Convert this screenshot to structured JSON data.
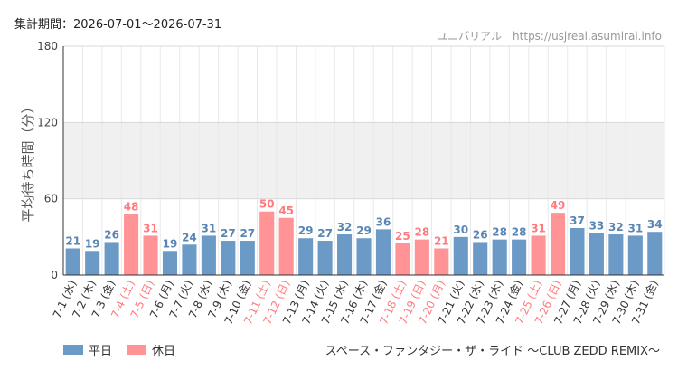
{
  "header": {
    "period_label": "集計期間：2026-07-01～2026-07-31",
    "credit": "ユニバリアル　https://usjreal.asumirai.info"
  },
  "footer": {
    "attraction_name": "スペース・ファンタジー・ザ・ライド ～CLUB ZEDD REMIX～"
  },
  "colors": {
    "weekday": "#6b9ac7",
    "holiday": "#ff9396",
    "holiday_text": "#ff7b7f"
  },
  "chart_data": {
    "type": "bar",
    "ylabel": "平均待ち時間（分）",
    "ylim": [
      0,
      180
    ],
    "yticks": [
      0,
      60,
      120,
      180
    ],
    "grid": true,
    "legend_position": "bottom-left",
    "legend": [
      {
        "key": "weekday",
        "label": "平日"
      },
      {
        "key": "holiday",
        "label": "休日"
      }
    ],
    "categories": [
      "7-1 (水)",
      "7-2 (木)",
      "7-3 (金)",
      "7-4 (土)",
      "7-5 (日)",
      "7-6 (月)",
      "7-7 (火)",
      "7-8 (水)",
      "7-9 (木)",
      "7-10 (金)",
      "7-11 (土)",
      "7-12 (日)",
      "7-13 (月)",
      "7-14 (火)",
      "7-15 (水)",
      "7-16 (木)",
      "7-17 (金)",
      "7-18 (土)",
      "7-19 (日)",
      "7-20 (月)",
      "7-21 (火)",
      "7-22 (水)",
      "7-23 (木)",
      "7-24 (金)",
      "7-25 (土)",
      "7-26 (日)",
      "7-27 (月)",
      "7-28 (火)",
      "7-29 (水)",
      "7-30 (木)",
      "7-31 (金)"
    ],
    "values": [
      21,
      19,
      26,
      48,
      31,
      19,
      24,
      31,
      27,
      27,
      50,
      45,
      29,
      27,
      32,
      29,
      36,
      25,
      28,
      21,
      30,
      26,
      28,
      28,
      31,
      49,
      37,
      33,
      32,
      31,
      34
    ],
    "day_type": [
      "weekday",
      "weekday",
      "weekday",
      "holiday",
      "holiday",
      "weekday",
      "weekday",
      "weekday",
      "weekday",
      "weekday",
      "holiday",
      "holiday",
      "weekday",
      "weekday",
      "weekday",
      "weekday",
      "weekday",
      "holiday",
      "holiday",
      "holiday",
      "weekday",
      "weekday",
      "weekday",
      "weekday",
      "holiday",
      "holiday",
      "weekday",
      "weekday",
      "weekday",
      "weekday",
      "weekday"
    ]
  }
}
